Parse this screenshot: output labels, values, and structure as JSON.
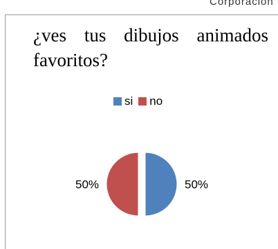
{
  "corner_text": "Corporacion",
  "chart_data": {
    "type": "pie",
    "title": "¿ves tus dibujos animados favoritos?",
    "categories": [
      "si",
      "no"
    ],
    "values": [
      50,
      50
    ],
    "data_labels": [
      "50%",
      "50%"
    ],
    "colors": [
      "#4f81bd",
      "#c0504d"
    ],
    "legend_placement": "top",
    "exploded": true
  }
}
